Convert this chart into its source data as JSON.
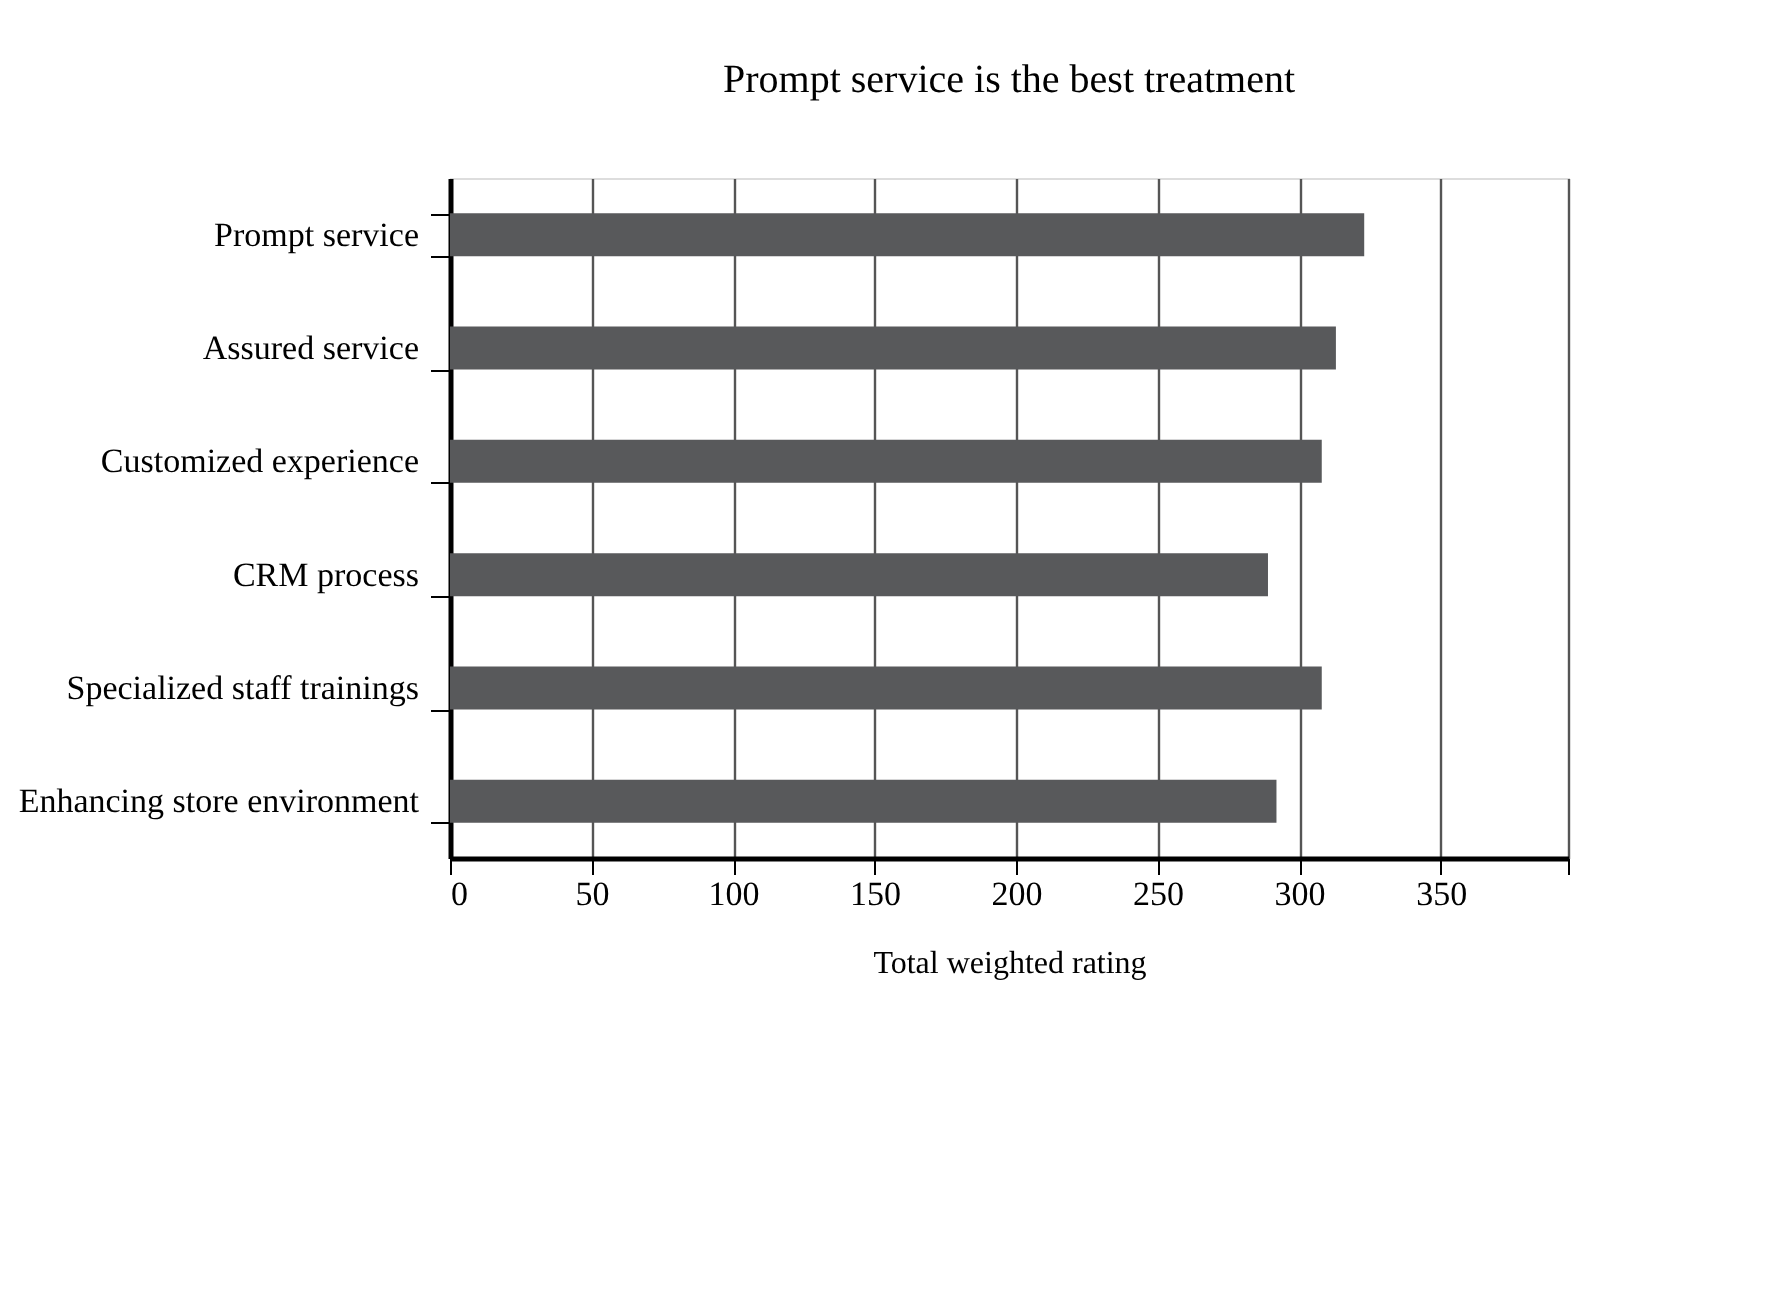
{
  "chart_data": {
    "type": "bar",
    "orientation": "horizontal",
    "title": "Prompt service is the best treatment",
    "xlabel": "Total weighted rating",
    "categories": [
      "Prompt service",
      "Assured service",
      "Customized experience",
      "CRM process",
      "Specialized staff trainings",
      "Enhancing store environment"
    ],
    "values": [
      323,
      313,
      308,
      289,
      308,
      292
    ],
    "color": "#58595b",
    "xlim": [
      0,
      395
    ],
    "xticks": [
      0,
      50,
      100,
      150,
      200,
      250,
      300,
      350,
      {
        "value": 395,
        "label": null
      }
    ],
    "grid": "x"
  }
}
